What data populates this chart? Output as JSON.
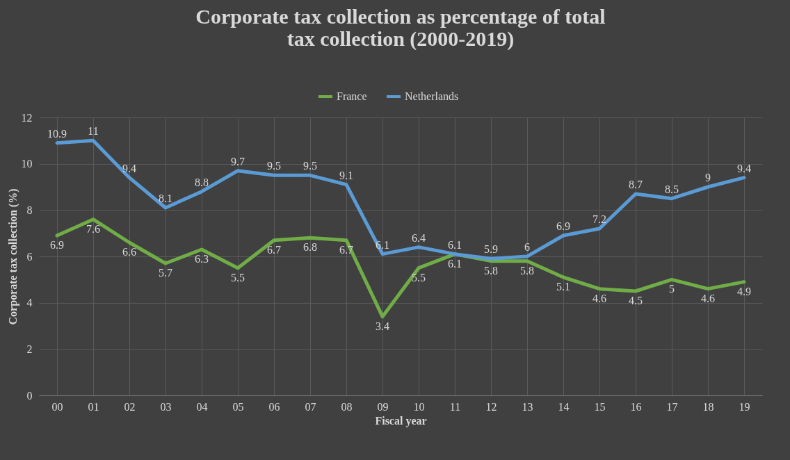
{
  "chart_data": {
    "type": "line",
    "title": "Corporate tax collection as percentage of total tax collection (2000-2019)",
    "xlabel": "Fiscal year",
    "ylabel": "Corporate tax collection  (%)",
    "categories": [
      "00",
      "01",
      "02",
      "03",
      "04",
      "05",
      "06",
      "07",
      "08",
      "09",
      "10",
      "11",
      "12",
      "13",
      "14",
      "15",
      "16",
      "17",
      "18",
      "19"
    ],
    "series": [
      {
        "name": "France",
        "color": "#70ad47",
        "values": [
          6.9,
          7.6,
          6.6,
          5.7,
          6.3,
          5.5,
          6.7,
          6.8,
          6.7,
          3.4,
          5.5,
          6.1,
          5.8,
          5.8,
          5.1,
          4.6,
          4.5,
          5,
          4.6,
          4.9
        ]
      },
      {
        "name": "Netherlands",
        "color": "#5b9bd5",
        "values": [
          10.9,
          11,
          9.4,
          8.1,
          8.8,
          9.7,
          9.5,
          9.5,
          9.1,
          6.1,
          6.4,
          6.1,
          5.9,
          6,
          6.9,
          7.2,
          8.7,
          8.5,
          9,
          9.4
        ]
      }
    ],
    "ylim": [
      0,
      12
    ],
    "yticks": [
      0,
      2,
      4,
      6,
      8,
      10,
      12
    ],
    "grid": true,
    "legend": "top",
    "data_labels": true,
    "marker": "none",
    "line_style": "solid"
  }
}
